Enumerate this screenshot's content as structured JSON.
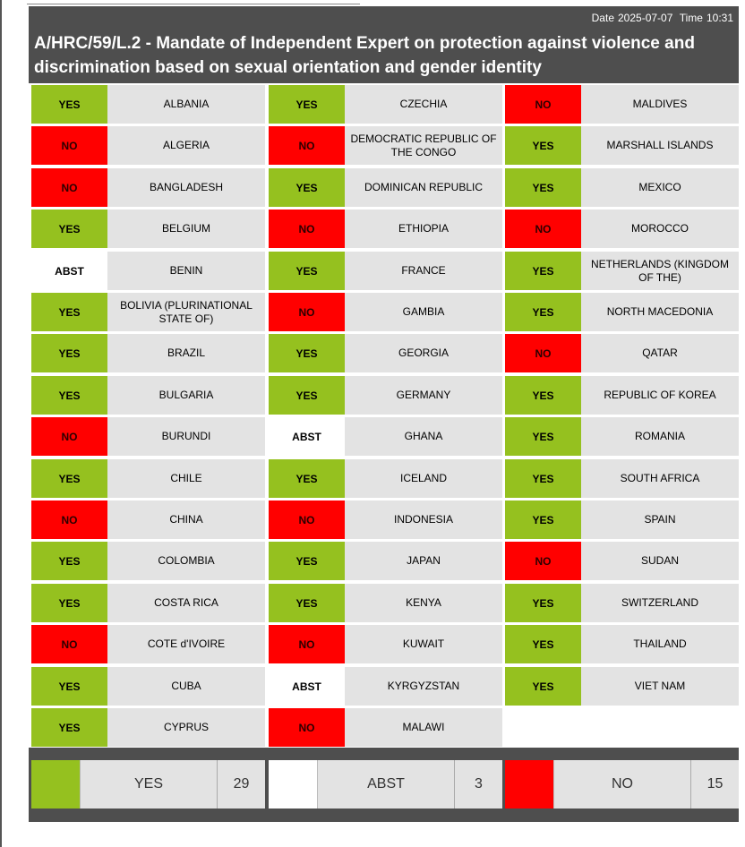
{
  "header": {
    "date_label": "Date",
    "date": "2025-07-07",
    "time_label": "Time",
    "time": "10:31",
    "title": "A/HRC/59/L.2 - Mandate of Independent Expert on protection against violence and discrimination based on sexual orientation and gender identity"
  },
  "colors": {
    "yes": "#95c11f",
    "no": "#ff0000",
    "abst": "#ffffff",
    "panel": "#4e4e4e",
    "cell": "#e3e3e3"
  },
  "columns": [
    [
      {
        "vote": "YES",
        "country": "ALBANIA"
      },
      {
        "vote": "NO",
        "country": "ALGERIA"
      },
      {
        "vote": "NO",
        "country": "BANGLADESH"
      },
      {
        "vote": "YES",
        "country": "BELGIUM"
      },
      {
        "vote": "ABST",
        "country": "BENIN"
      },
      {
        "vote": "YES",
        "country": "BOLIVIA (PLURINATIONAL STATE OF)"
      },
      {
        "vote": "YES",
        "country": "BRAZIL"
      },
      {
        "vote": "YES",
        "country": "BULGARIA"
      },
      {
        "vote": "NO",
        "country": "BURUNDI"
      },
      {
        "vote": "YES",
        "country": "CHILE"
      },
      {
        "vote": "NO",
        "country": "CHINA"
      },
      {
        "vote": "YES",
        "country": "COLOMBIA"
      },
      {
        "vote": "YES",
        "country": "COSTA RICA"
      },
      {
        "vote": "NO",
        "country": "COTE d'IVOIRE"
      },
      {
        "vote": "YES",
        "country": "CUBA"
      },
      {
        "vote": "YES",
        "country": "CYPRUS"
      }
    ],
    [
      {
        "vote": "YES",
        "country": "CZECHIA"
      },
      {
        "vote": "NO",
        "country": "DEMOCRATIC REPUBLIC OF THE CONGO"
      },
      {
        "vote": "YES",
        "country": "DOMINICAN REPUBLIC"
      },
      {
        "vote": "NO",
        "country": "ETHIOPIA"
      },
      {
        "vote": "YES",
        "country": "FRANCE"
      },
      {
        "vote": "NO",
        "country": "GAMBIA"
      },
      {
        "vote": "YES",
        "country": "GEORGIA"
      },
      {
        "vote": "YES",
        "country": "GERMANY"
      },
      {
        "vote": "ABST",
        "country": "GHANA"
      },
      {
        "vote": "YES",
        "country": "ICELAND"
      },
      {
        "vote": "NO",
        "country": "INDONESIA"
      },
      {
        "vote": "YES",
        "country": "JAPAN"
      },
      {
        "vote": "YES",
        "country": "KENYA"
      },
      {
        "vote": "NO",
        "country": "KUWAIT"
      },
      {
        "vote": "ABST",
        "country": "KYRGYZSTAN"
      },
      {
        "vote": "NO",
        "country": "MALAWI"
      }
    ],
    [
      {
        "vote": "NO",
        "country": "MALDIVES"
      },
      {
        "vote": "YES",
        "country": "MARSHALL ISLANDS"
      },
      {
        "vote": "YES",
        "country": "MEXICO"
      },
      {
        "vote": "NO",
        "country": "MOROCCO"
      },
      {
        "vote": "YES",
        "country": "NETHERLANDS (KINGDOM OF THE)"
      },
      {
        "vote": "YES",
        "country": "NORTH MACEDONIA"
      },
      {
        "vote": "NO",
        "country": "QATAR"
      },
      {
        "vote": "YES",
        "country": "REPUBLIC OF KOREA"
      },
      {
        "vote": "YES",
        "country": "ROMANIA"
      },
      {
        "vote": "YES",
        "country": "SOUTH AFRICA"
      },
      {
        "vote": "YES",
        "country": "SPAIN"
      },
      {
        "vote": "NO",
        "country": "SUDAN"
      },
      {
        "vote": "YES",
        "country": "SWITZERLAND"
      },
      {
        "vote": "YES",
        "country": "THAILAND"
      },
      {
        "vote": "YES",
        "country": "VIET NAM"
      }
    ]
  ],
  "summary": [
    {
      "key": "yes",
      "label": "YES",
      "count": "29"
    },
    {
      "key": "abst",
      "label": "ABST",
      "count": "3"
    },
    {
      "key": "no",
      "label": "NO",
      "count": "15"
    }
  ]
}
